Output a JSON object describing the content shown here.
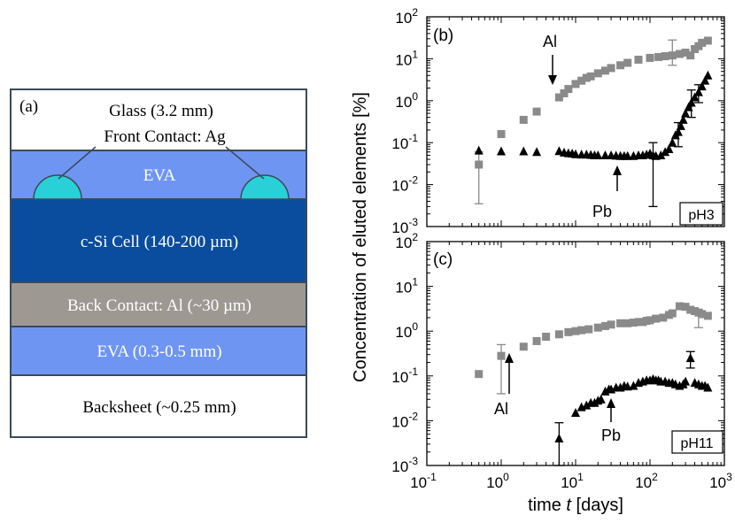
{
  "colors": {
    "glass": "#ffffff",
    "eva": "#6f95f2",
    "contact_ag": "#2ad0d8",
    "cell": "#0a4d9e",
    "back_contact": "#9e9893",
    "backsheet": "#ffffff",
    "gray_series": "#8a8a8a",
    "black_series": "#000000"
  },
  "panel_a": {
    "label": "(a)",
    "layers": [
      {
        "name": "glass",
        "label": "Glass (3.2 mm)",
        "sublabel": "Front Contact: Ag"
      },
      {
        "name": "eva-top",
        "label": "EVA"
      },
      {
        "name": "cell",
        "label": "c-Si Cell (140-200 µm)"
      },
      {
        "name": "back-contact",
        "label": "Back Contact: Al (~30 µm)"
      },
      {
        "name": "eva-bottom",
        "label": "EVA (0.3-0.5 mm)"
      },
      {
        "name": "backsheet",
        "label": "Backsheet (~0.25 mm)"
      }
    ]
  },
  "chart_data": [
    {
      "type": "scatter",
      "panel": "(b)",
      "tag": "pH3",
      "x_scale": "log",
      "y_scale": "log",
      "xlim": [
        0.1,
        1000
      ],
      "ylim": [
        0.001,
        100
      ],
      "ylabel": "Concentration of eluted elements [%]",
      "annotations": [
        {
          "text": "Al"
        },
        {
          "text": "Pb"
        }
      ],
      "series": [
        {
          "name": "Al",
          "marker": "square",
          "color": "gray",
          "x": [
            0.5,
            1,
            2,
            3,
            6,
            7,
            8,
            10,
            12,
            14,
            16,
            20,
            25,
            30,
            40,
            50,
            70,
            100,
            130,
            160,
            200,
            250,
            300,
            350,
            400,
            450,
            500,
            600
          ],
          "y": [
            0.03,
            0.16,
            0.35,
            0.55,
            1.2,
            1.5,
            1.9,
            2.5,
            3.0,
            3.5,
            3.8,
            4.5,
            5.2,
            6.0,
            7.0,
            8.0,
            9.5,
            10.5,
            11,
            11.5,
            12,
            13,
            14,
            12,
            17,
            20,
            24,
            27
          ],
          "err": [
            {
              "x": 0.5,
              "low": 0.0035,
              "high": 0.06
            },
            {
              "x": 200,
              "low": 7,
              "high": 28
            }
          ]
        },
        {
          "name": "Pb",
          "marker": "triangle",
          "color": "black",
          "x": [
            0.5,
            1,
            2,
            3,
            6,
            7,
            8,
            9,
            10,
            12,
            14,
            16,
            18,
            20,
            25,
            30,
            35,
            40,
            45,
            50,
            60,
            70,
            80,
            90,
            100,
            110,
            120,
            140,
            160,
            180,
            200,
            220,
            240,
            260,
            280,
            300,
            330,
            360,
            400,
            450,
            500,
            550,
            600
          ],
          "y": [
            0.065,
            0.062,
            0.062,
            0.06,
            0.063,
            0.058,
            0.056,
            0.055,
            0.053,
            0.052,
            0.052,
            0.051,
            0.05,
            0.05,
            0.05,
            0.05,
            0.049,
            0.048,
            0.048,
            0.048,
            0.048,
            0.05,
            0.05,
            0.052,
            0.055,
            0.05,
            0.048,
            0.05,
            0.06,
            0.07,
            0.1,
            0.15,
            0.18,
            0.25,
            0.35,
            0.5,
            0.7,
            0.9,
            1.2,
            1.6,
            2.2,
            3.0,
            4.0
          ],
          "err": [
            {
              "x": 110,
              "low": 0.003,
              "high": 0.1
            },
            {
              "x": 240,
              "low": 0.08,
              "high": 0.3
            },
            {
              "x": 360,
              "low": 0.4,
              "high": 1.8
            },
            {
              "x": 450,
              "low": 0.9,
              "high": 2.4
            }
          ]
        }
      ]
    },
    {
      "type": "scatter",
      "panel": "(c)",
      "tag": "pH11",
      "x_scale": "log",
      "y_scale": "log",
      "xlim": [
        0.1,
        1000
      ],
      "ylim": [
        0.001,
        100
      ],
      "xlabel_prefix": "time ",
      "xlabel_var": "t",
      "xlabel_suffix": " [days]",
      "annotations": [
        {
          "text": "Al"
        },
        {
          "text": "Pb"
        }
      ],
      "series": [
        {
          "name": "Al",
          "marker": "square",
          "color": "gray",
          "x": [
            0.5,
            1,
            2,
            3,
            4,
            6,
            8,
            10,
            12,
            15,
            20,
            25,
            30,
            40,
            50,
            60,
            70,
            80,
            90,
            100,
            120,
            150,
            180,
            200,
            250,
            300,
            350,
            400,
            450,
            500,
            600
          ],
          "y": [
            0.11,
            0.28,
            0.45,
            0.6,
            0.75,
            0.85,
            0.95,
            1.0,
            1.05,
            1.1,
            1.2,
            1.3,
            1.4,
            1.5,
            1.5,
            1.55,
            1.6,
            1.6,
            1.7,
            1.75,
            1.9,
            2.0,
            2.3,
            2.5,
            3.6,
            3.5,
            3.0,
            2.8,
            2.6,
            2.4,
            2.2
          ],
          "err": [
            {
              "x": 1,
              "low": 0.04,
              "high": 0.5
            },
            {
              "x": 450,
              "low": 1.2,
              "high": 3.0
            }
          ]
        },
        {
          "name": "Pb",
          "marker": "triangle",
          "color": "black",
          "x": [
            6,
            10,
            12,
            14,
            16,
            18,
            20,
            22,
            25,
            28,
            30,
            35,
            40,
            45,
            50,
            60,
            70,
            80,
            90,
            100,
            110,
            120,
            130,
            140,
            160,
            180,
            200,
            220,
            250,
            280,
            300,
            350,
            400,
            450,
            500,
            550,
            600
          ],
          "y": [
            0.004,
            0.015,
            0.02,
            0.022,
            0.025,
            0.025,
            0.028,
            0.03,
            0.045,
            0.05,
            0.05,
            0.055,
            0.055,
            0.06,
            0.058,
            0.06,
            0.07,
            0.075,
            0.08,
            0.08,
            0.085,
            0.08,
            0.08,
            0.075,
            0.075,
            0.07,
            0.07,
            0.065,
            0.06,
            0.065,
            0.075,
            0.25,
            0.07,
            0.065,
            0.06,
            0.06,
            0.055
          ],
          "err": [
            {
              "x": 6,
              "low": 0.001,
              "high": 0.009
            },
            {
              "x": 350,
              "low": 0.15,
              "high": 0.35
            }
          ]
        }
      ]
    }
  ],
  "shared_axes": {
    "ylabel": "Concentration of eluted elements [%]",
    "x_ticks": [
      {
        "value": 0.1,
        "base": "10",
        "exp": "-1"
      },
      {
        "value": 1,
        "base": "10",
        "exp": "0"
      },
      {
        "value": 10,
        "base": "10",
        "exp": "1"
      },
      {
        "value": 100,
        "base": "10",
        "exp": "2"
      },
      {
        "value": 1000,
        "base": "10",
        "exp": "3"
      }
    ],
    "y_ticks": [
      {
        "value": 0.001,
        "base": "10",
        "exp": "-3"
      },
      {
        "value": 0.01,
        "base": "10",
        "exp": "-2"
      },
      {
        "value": 0.1,
        "base": "10",
        "exp": "-1"
      },
      {
        "value": 1,
        "base": "10",
        "exp": "0"
      },
      {
        "value": 10,
        "base": "10",
        "exp": "1"
      },
      {
        "value": 100,
        "base": "10",
        "exp": "2"
      }
    ]
  }
}
